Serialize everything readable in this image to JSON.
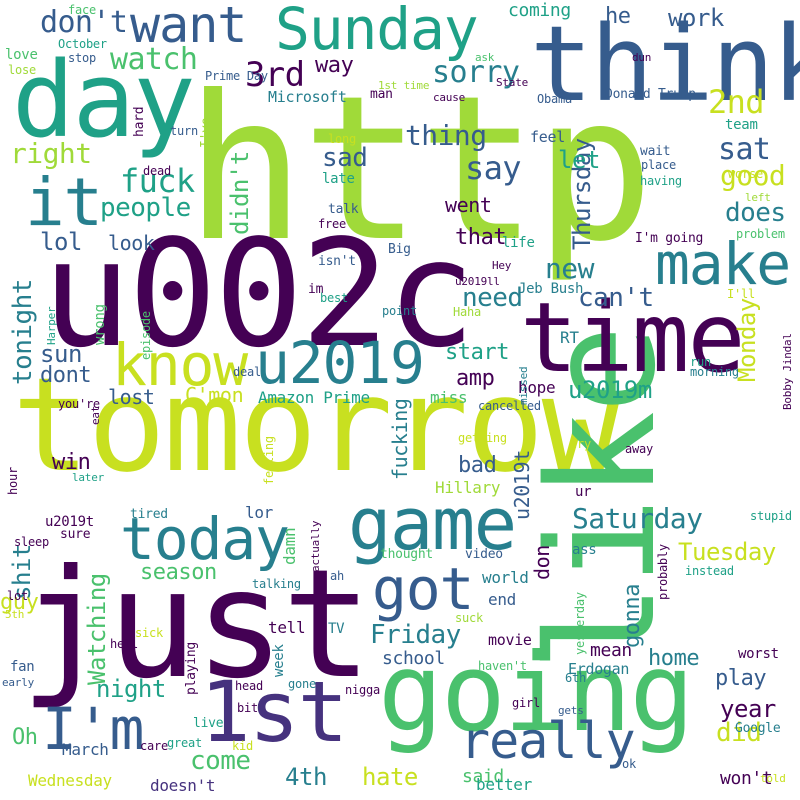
{
  "palette": {
    "lime": "#a0da39",
    "yellow": "#c8e020",
    "green": "#4ac16d",
    "teal": "#1fa187",
    "cyan": "#277f8e",
    "blue": "#365c8d",
    "indigo": "#46327e",
    "purple": "#440154"
  },
  "words": [
    {
      "text": "http"
    },
    {
      "text": "tomorrow"
    },
    {
      "text": "u002c"
    },
    {
      "text": "just"
    },
    {
      "text": "like"
    },
    {
      "text": "going"
    },
    {
      "text": "day"
    },
    {
      "text": "think"
    },
    {
      "text": "time"
    },
    {
      "text": "1st"
    },
    {
      "text": "game"
    },
    {
      "text": "want"
    },
    {
      "text": "Sunday"
    },
    {
      "text": "it"
    },
    {
      "text": "make"
    },
    {
      "text": "know"
    },
    {
      "text": "u2019"
    },
    {
      "text": "today"
    },
    {
      "text": "got"
    },
    {
      "text": "I'm"
    },
    {
      "text": "really"
    },
    {
      "text": "don't"
    },
    {
      "text": "3rd"
    },
    {
      "text": "2nd"
    },
    {
      "text": "sat"
    },
    {
      "text": "say"
    },
    {
      "text": "sorry"
    },
    {
      "text": "fuck"
    },
    {
      "text": "people"
    },
    {
      "text": "watch"
    },
    {
      "text": "work"
    },
    {
      "text": "he"
    },
    {
      "text": "coming"
    },
    {
      "text": "way"
    },
    {
      "text": "right"
    },
    {
      "text": "Thursday"
    },
    {
      "text": "thing"
    },
    {
      "text": "didn't"
    },
    {
      "text": "sad"
    },
    {
      "text": "went"
    },
    {
      "text": "good"
    },
    {
      "text": "does"
    },
    {
      "text": "let"
    },
    {
      "text": "tonight"
    },
    {
      "text": "lol"
    },
    {
      "text": "look"
    },
    {
      "text": "that"
    },
    {
      "text": "new"
    },
    {
      "text": "can't"
    },
    {
      "text": "need"
    },
    {
      "text": "sun"
    },
    {
      "text": "dont"
    },
    {
      "text": "start"
    },
    {
      "text": "Monday"
    },
    {
      "text": "amp"
    },
    {
      "text": "u2019m"
    },
    {
      "text": "lost"
    },
    {
      "text": "C'mon"
    },
    {
      "text": "Amazon Prime"
    },
    {
      "text": "Saturday"
    },
    {
      "text": "win"
    },
    {
      "text": "bad"
    },
    {
      "text": "fucking"
    },
    {
      "text": "Tuesday"
    },
    {
      "text": "season"
    },
    {
      "text": "guy"
    },
    {
      "text": "Friday"
    },
    {
      "text": "shit"
    },
    {
      "text": "Watching"
    },
    {
      "text": "night"
    },
    {
      "text": "Oh"
    },
    {
      "text": "come"
    },
    {
      "text": "4th"
    },
    {
      "text": "hate"
    },
    {
      "text": "did"
    },
    {
      "text": "play"
    },
    {
      "text": "year"
    },
    {
      "text": "home"
    },
    {
      "text": "gonna"
    },
    {
      "text": "mean"
    },
    {
      "text": "u2019t"
    },
    {
      "text": "don"
    },
    {
      "text": "school"
    },
    {
      "text": "said"
    },
    {
      "text": "won't"
    },
    {
      "text": "better"
    },
    {
      "text": "Wednesday"
    },
    {
      "text": "doesn't"
    },
    {
      "text": "March"
    },
    {
      "text": "lor"
    },
    {
      "text": "damn"
    },
    {
      "text": "tell"
    },
    {
      "text": "week"
    },
    {
      "text": "TV"
    },
    {
      "text": "end"
    },
    {
      "text": "world"
    },
    {
      "text": "Hillary"
    },
    {
      "text": "hope"
    },
    {
      "text": "miss"
    },
    {
      "text": "RT"
    },
    {
      "text": "Jeb Bush"
    },
    {
      "text": "u2019ll"
    },
    {
      "text": "Hey"
    },
    {
      "text": "life"
    },
    {
      "text": "I'm going"
    },
    {
      "text": "problem"
    },
    {
      "text": "left"
    },
    {
      "text": "I'll"
    },
    {
      "text": "Donald Trump"
    },
    {
      "text": "Obama"
    },
    {
      "text": "team"
    },
    {
      "text": "wait"
    },
    {
      "text": "place"
    },
    {
      "text": "having"
    },
    {
      "text": "worse"
    },
    {
      "text": "feel"
    },
    {
      "text": "late"
    },
    {
      "text": "long"
    },
    {
      "text": "talk"
    },
    {
      "text": "free"
    },
    {
      "text": "Big"
    },
    {
      "text": "isn't"
    },
    {
      "text": "im"
    },
    {
      "text": "best"
    },
    {
      "text": "point"
    },
    {
      "text": "Haha"
    },
    {
      "text": "Microsoft"
    },
    {
      "text": "man"
    },
    {
      "text": "cause"
    },
    {
      "text": "State"
    },
    {
      "text": "dun"
    },
    {
      "text": "ask"
    },
    {
      "text": "1st time"
    },
    {
      "text": "Prime Day"
    },
    {
      "text": "October"
    },
    {
      "text": "face"
    },
    {
      "text": "love"
    },
    {
      "text": "lose"
    },
    {
      "text": "stop"
    },
    {
      "text": "hard"
    },
    {
      "text": "I've"
    },
    {
      "text": "turn"
    },
    {
      "text": "dead"
    },
    {
      "text": "wrong"
    },
    {
      "text": "episode"
    },
    {
      "text": "Harper"
    },
    {
      "text": "deal"
    },
    {
      "text": "you're"
    },
    {
      "text": "eat"
    },
    {
      "text": "hour"
    },
    {
      "text": "later"
    },
    {
      "text": "u2019t"
    },
    {
      "text": "sure"
    },
    {
      "text": "tired"
    },
    {
      "text": "sleep"
    },
    {
      "text": "lot"
    },
    {
      "text": "5th"
    },
    {
      "text": "fan"
    },
    {
      "text": "early"
    },
    {
      "text": "hell"
    },
    {
      "text": "sick"
    },
    {
      "text": "talking"
    },
    {
      "text": "ah"
    },
    {
      "text": "actually"
    },
    {
      "text": "thought"
    },
    {
      "text": "video"
    },
    {
      "text": "ass"
    },
    {
      "text": "probably"
    },
    {
      "text": "instead"
    },
    {
      "text": "stupid"
    },
    {
      "text": "Bobby Jindal"
    },
    {
      "text": "run"
    },
    {
      "text": "morning"
    },
    {
      "text": "missed"
    },
    {
      "text": "cancelled"
    },
    {
      "text": "getting"
    },
    {
      "text": "try"
    },
    {
      "text": "away"
    },
    {
      "text": "ur"
    },
    {
      "text": "feeling"
    },
    {
      "text": "yesterday"
    },
    {
      "text": "suck"
    },
    {
      "text": "movie"
    },
    {
      "text": "haven't"
    },
    {
      "text": "Erdogan"
    },
    {
      "text": "6th"
    },
    {
      "text": "girl"
    },
    {
      "text": "gets"
    },
    {
      "text": "Google"
    },
    {
      "text": "worst"
    },
    {
      "text": "nigga"
    },
    {
      "text": "gone"
    },
    {
      "text": "head"
    },
    {
      "text": "playing"
    },
    {
      "text": "live"
    },
    {
      "text": "bit"
    },
    {
      "text": "care"
    },
    {
      "text": "great"
    },
    {
      "text": "kid"
    },
    {
      "text": "ok"
    },
    {
      "text": "told"
    }
  ]
}
